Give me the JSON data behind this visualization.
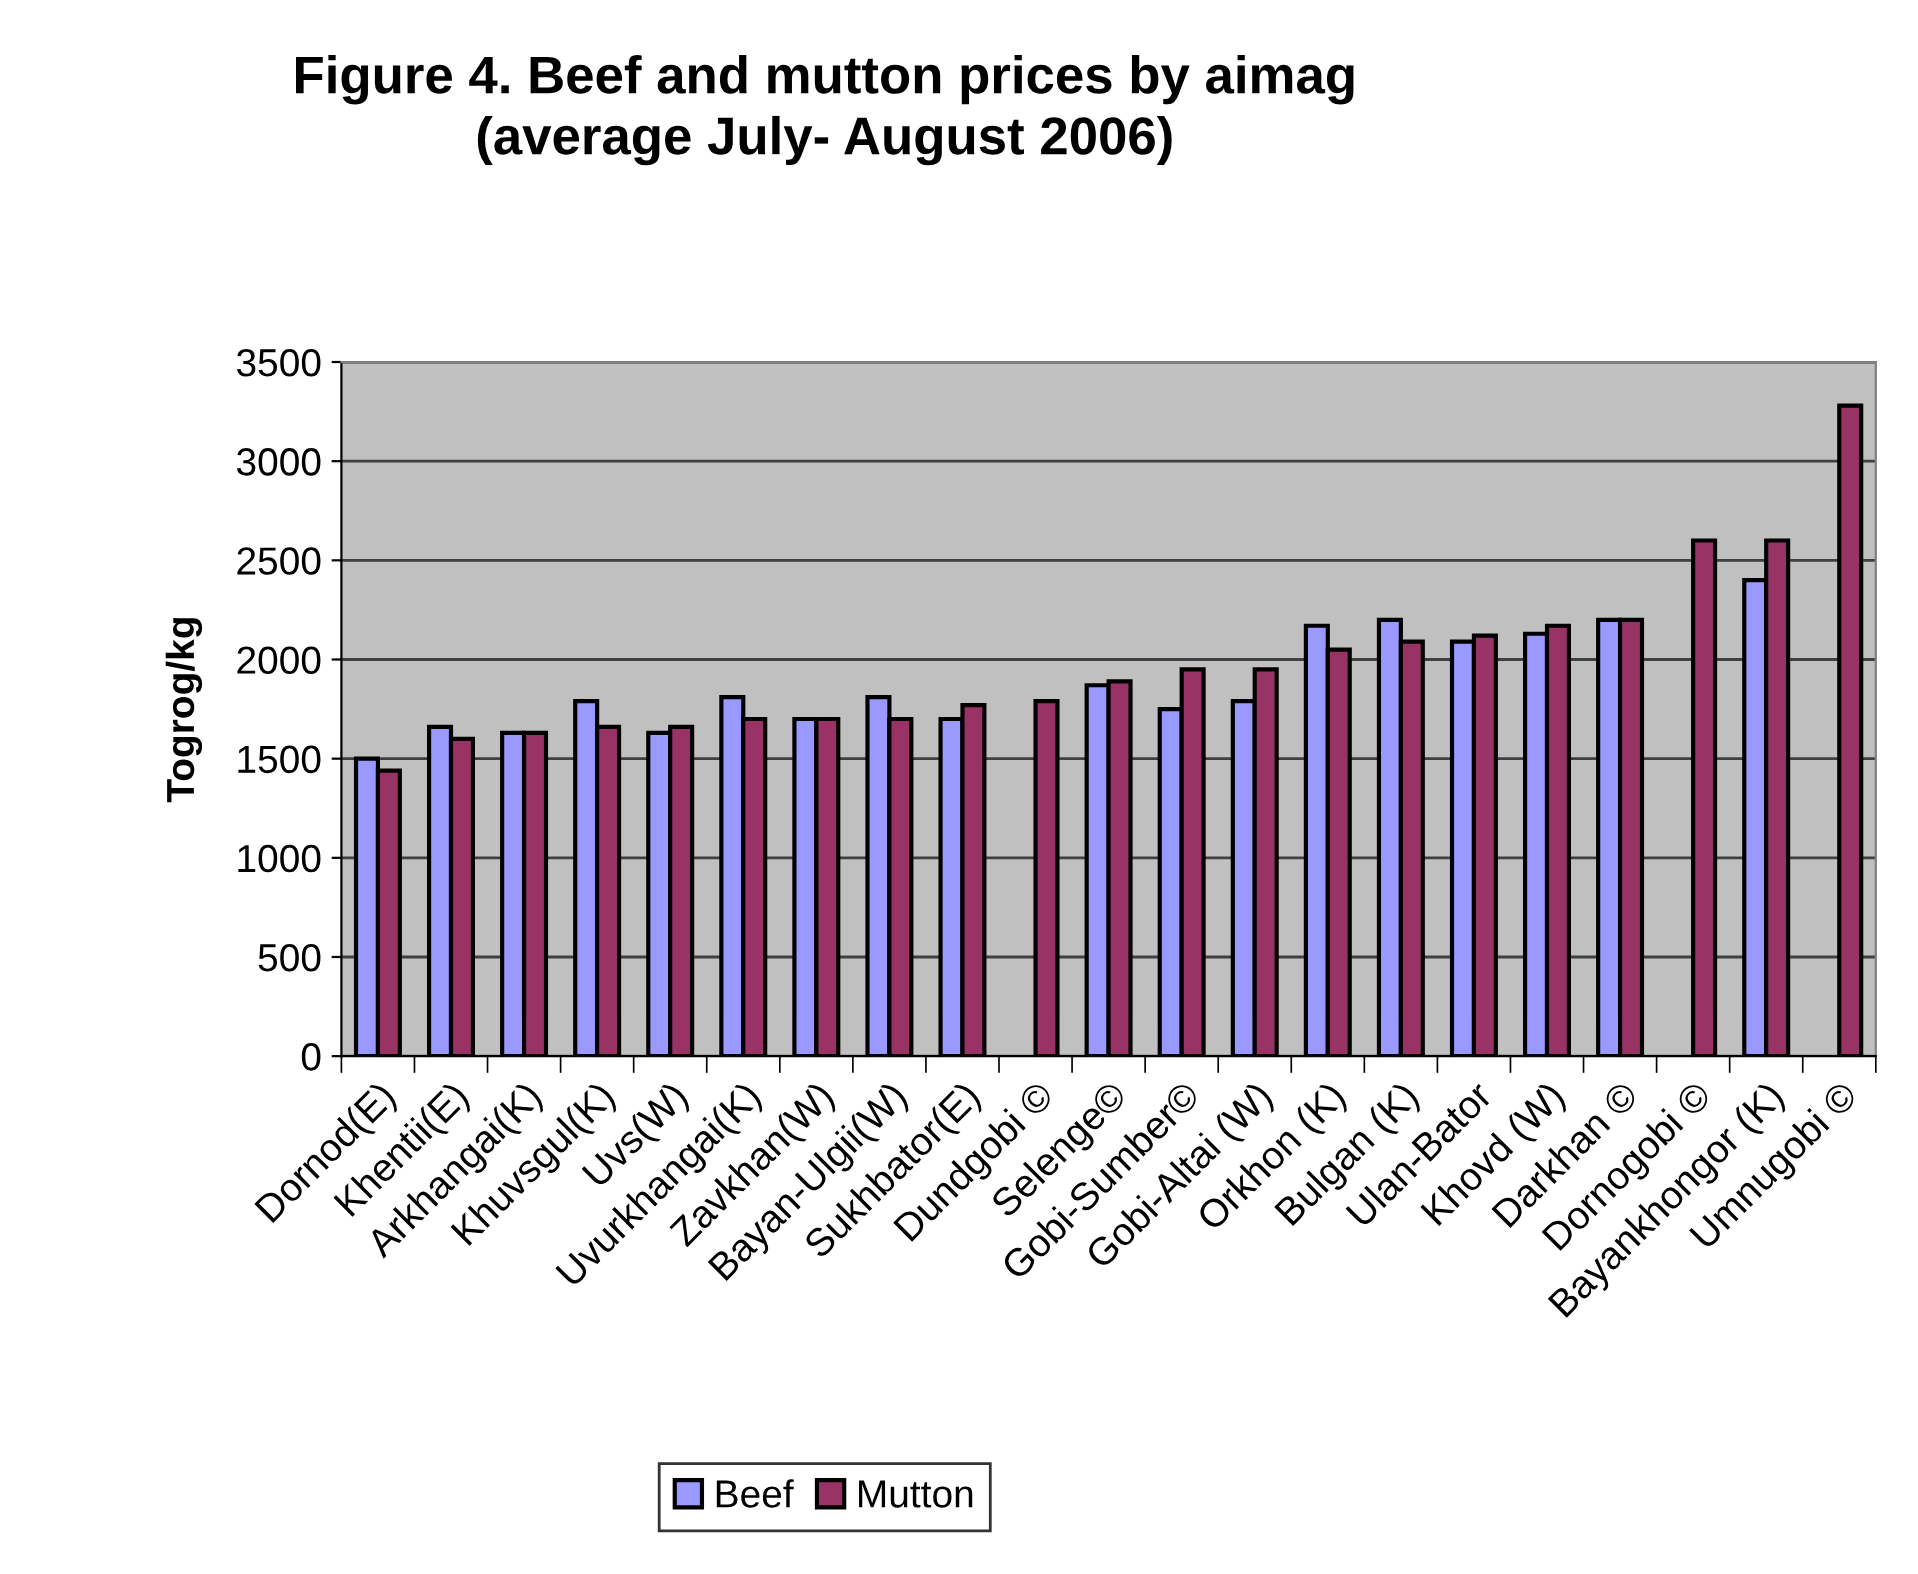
{
  "chart_data": {
    "type": "bar",
    "title": "Figure 4. Beef and mutton prices by aimag\n(average July- August 2006)",
    "ylabel": "Togrog/kg",
    "categories": [
      "Dornod(E)",
      "Khentii(E)",
      "Arkhangai(K)",
      "Khuvsgul(K)",
      "Uvs(W)",
      "Uvurkhangai(K)",
      "Zavkhan(W)",
      "Bayan-Ulgii(W)",
      "Sukhbator(E)",
      "Dundgobi ©",
      "Selenge©",
      "Gobi-Sumber©",
      "Gobi-Altai (W)",
      "Orkhon (K)",
      "Bulgan (K)",
      "Ulan-Bator",
      "Khovd (W)",
      "Darkhan ©",
      "Dornogobi ©",
      "Bayankhongor (K)",
      "Umnugobi ©"
    ],
    "series": [
      {
        "name": "Beef",
        "color": "#9999ff",
        "values": [
          1500,
          1660,
          1630,
          1790,
          1630,
          1810,
          1700,
          1810,
          1700,
          null,
          1870,
          1750,
          1790,
          2170,
          2200,
          2090,
          2130,
          2200,
          null,
          2400,
          null
        ]
      },
      {
        "name": "Mutton",
        "color": "#993366",
        "values": [
          1440,
          1600,
          1630,
          1660,
          1660,
          1700,
          1700,
          1700,
          1770,
          1790,
          1890,
          1950,
          1950,
          2050,
          2090,
          2120,
          2170,
          2200,
          2600,
          2600,
          3280
        ]
      }
    ],
    "ylim": [
      0,
      3500
    ],
    "yticks": [
      0,
      500,
      1000,
      1500,
      2000,
      2500,
      3000,
      3500
    ],
    "grid": "y",
    "legend": "bottom"
  }
}
